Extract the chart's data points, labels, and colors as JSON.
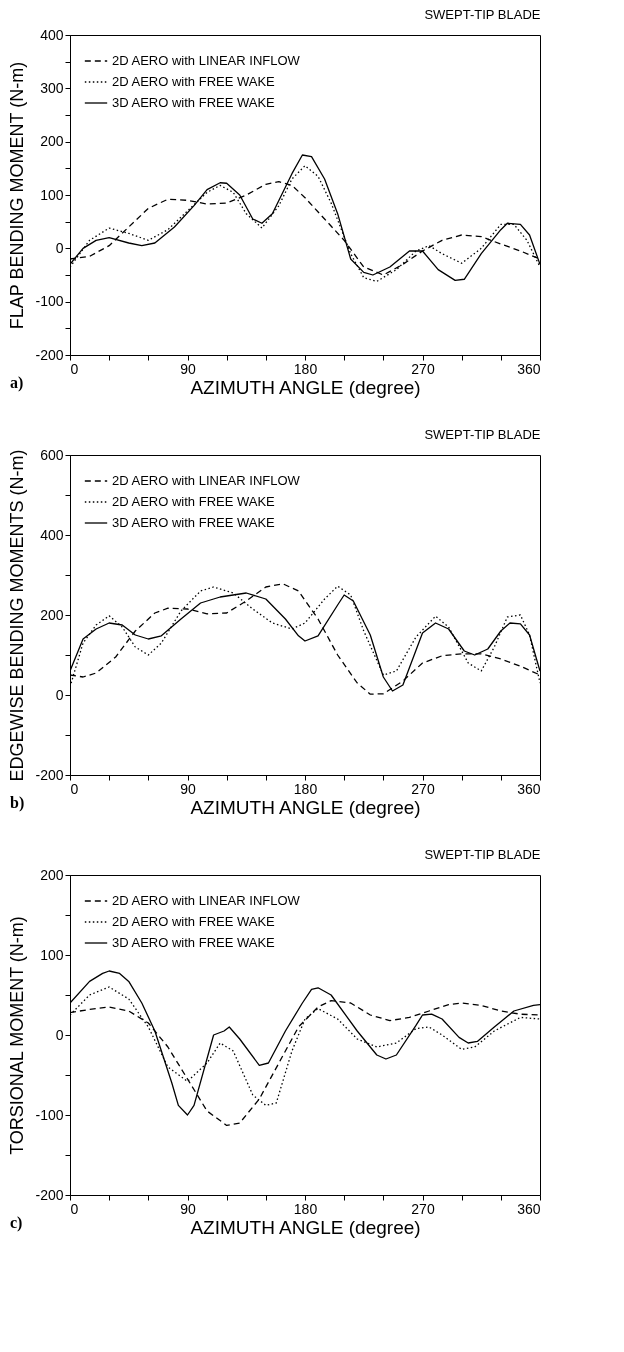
{
  "chart_data": [
    {
      "type": "line",
      "title": "SWEPT-TIP BLADE",
      "xlabel": "AZIMUTH ANGLE (degree)",
      "ylabel": "FLAP BENDING MOMENT (N-m)",
      "annotations": [
        "a)"
      ],
      "legend": "top left",
      "grid": false,
      "xlim": [
        0,
        360
      ],
      "xticks": [
        0,
        {
          "value": 30,
          "label": null
        },
        {
          "value": 60,
          "label": null
        },
        90,
        {
          "value": 120,
          "label": null
        },
        {
          "value": 150,
          "label": null
        },
        180,
        {
          "value": 210,
          "label": null
        },
        {
          "value": 240,
          "label": null
        },
        270,
        {
          "value": 300,
          "label": null
        },
        {
          "value": 330,
          "label": null
        },
        360
      ],
      "ylim": [
        -200,
        400
      ],
      "yticks": [
        -200,
        {
          "value": -150,
          "label": null
        },
        -100,
        {
          "value": -50,
          "label": null
        },
        0,
        {
          "value": 50,
          "label": null
        },
        100,
        {
          "value": 150,
          "label": null
        },
        200,
        {
          "value": 250,
          "label": null
        },
        300,
        {
          "value": 350,
          "label": null
        },
        400
      ],
      "series": [
        {
          "name": "2D AERO with LINEAR INFLOW",
          "color": "#000000",
          "line_style": "dashed",
          "x": [
            0,
            15,
            30,
            45,
            60,
            75,
            90,
            105,
            120,
            135,
            150,
            160,
            170,
            180,
            195,
            210,
            225,
            240,
            255,
            270,
            285,
            300,
            315,
            330,
            345,
            360
          ],
          "values": [
            -20,
            -15,
            5,
            40,
            75,
            92,
            90,
            83,
            85,
            100,
            120,
            125,
            118,
            95,
            55,
            15,
            -35,
            -50,
            -30,
            -5,
            15,
            25,
            22,
            8,
            -5,
            -20
          ]
        },
        {
          "name": "2D AERO with FREE WAKE",
          "color": "#000000",
          "line_style": "dotted",
          "x": [
            0,
            15,
            30,
            45,
            60,
            75,
            90,
            105,
            115,
            125,
            135,
            147,
            160,
            170,
            180,
            190,
            200,
            215,
            225,
            235,
            250,
            265,
            275,
            285,
            300,
            315,
            330,
            340,
            350,
            360
          ],
          "values": [
            -35,
            15,
            38,
            28,
            15,
            35,
            70,
            105,
            118,
            105,
            65,
            38,
            80,
            130,
            155,
            135,
            85,
            -10,
            -55,
            -62,
            -40,
            -5,
            5,
            -10,
            -28,
            0,
            45,
            45,
            15,
            -35
          ]
        },
        {
          "name": "3D AERO with FREE WAKE",
          "color": "#000000",
          "line_style": "solid",
          "x": [
            0,
            10,
            20,
            30,
            45,
            55,
            65,
            80,
            95,
            105,
            115,
            120,
            130,
            140,
            147,
            155,
            170,
            178,
            185,
            195,
            205,
            215,
            225,
            232,
            245,
            260,
            270,
            282,
            295,
            302,
            315,
            330,
            335,
            345,
            352,
            360
          ],
          "values": [
            -30,
            0,
            15,
            20,
            10,
            5,
            10,
            40,
            80,
            110,
            123,
            122,
            100,
            55,
            47,
            65,
            140,
            175,
            172,
            130,
            65,
            -20,
            -45,
            -50,
            -35,
            -5,
            -5,
            -40,
            -60,
            -58,
            -10,
            35,
            47,
            45,
            25,
            -30
          ]
        }
      ]
    },
    {
      "type": "line",
      "title": "SWEPT-TIP BLADE",
      "xlabel": "AZIMUTH ANGLE (degree)",
      "ylabel": "EDGEWISE BENDING MOMENTS (N-m)",
      "annotations": [
        "b)"
      ],
      "legend": "top left",
      "grid": false,
      "xlim": [
        0,
        360
      ],
      "xticks": [
        0,
        {
          "value": 30,
          "label": null
        },
        {
          "value": 60,
          "label": null
        },
        90,
        {
          "value": 120,
          "label": null
        },
        {
          "value": 150,
          "label": null
        },
        180,
        {
          "value": 210,
          "label": null
        },
        {
          "value": 240,
          "label": null
        },
        270,
        {
          "value": 300,
          "label": null
        },
        {
          "value": 330,
          "label": null
        },
        360
      ],
      "ylim": [
        -200,
        600
      ],
      "yticks": [
        -200,
        {
          "value": -100,
          "label": null
        },
        0,
        {
          "value": 100,
          "label": null
        },
        200,
        {
          "value": 300,
          "label": null
        },
        400,
        {
          "value": 500,
          "label": null
        },
        600
      ],
      "series": [
        {
          "name": "2D AERO with LINEAR INFLOW",
          "color": "#000000",
          "line_style": "dashed",
          "x": [
            0,
            10,
            20,
            35,
            50,
            65,
            75,
            90,
            105,
            120,
            135,
            150,
            163,
            175,
            190,
            205,
            220,
            230,
            240,
            255,
            270,
            285,
            300,
            315,
            330,
            345,
            360
          ],
          "values": [
            50,
            45,
            55,
            95,
            160,
            205,
            217,
            215,
            203,
            205,
            235,
            270,
            278,
            260,
            190,
            100,
            30,
            2,
            3,
            35,
            80,
            98,
            103,
            103,
            90,
            72,
            50
          ]
        },
        {
          "name": "2D AERO with FREE WAKE",
          "color": "#000000",
          "line_style": "dotted",
          "x": [
            0,
            10,
            20,
            30,
            40,
            50,
            60,
            70,
            85,
            100,
            110,
            125,
            140,
            155,
            170,
            180,
            195,
            205,
            215,
            225,
            240,
            250,
            265,
            280,
            290,
            305,
            315,
            325,
            335,
            345,
            352,
            360
          ],
          "values": [
            20,
            130,
            175,
            198,
            170,
            120,
            100,
            130,
            210,
            260,
            270,
            255,
            215,
            180,
            165,
            180,
            240,
            272,
            250,
            160,
            50,
            60,
            145,
            197,
            170,
            80,
            60,
            120,
            195,
            200,
            150,
            30
          ]
        },
        {
          "name": "3D AERO with FREE WAKE",
          "color": "#000000",
          "line_style": "solid",
          "x": [
            0,
            10,
            20,
            30,
            40,
            50,
            60,
            70,
            85,
            100,
            115,
            135,
            150,
            165,
            175,
            180,
            190,
            205,
            210,
            217,
            230,
            240,
            247,
            255,
            270,
            280,
            290,
            302,
            310,
            320,
            330,
            337,
            345,
            352,
            360
          ],
          "values": [
            60,
            140,
            165,
            180,
            175,
            150,
            140,
            148,
            190,
            230,
            245,
            255,
            240,
            190,
            148,
            135,
            148,
            225,
            250,
            235,
            150,
            45,
            10,
            25,
            155,
            180,
            165,
            110,
            100,
            115,
            160,
            180,
            178,
            150,
            60
          ]
        }
      ]
    },
    {
      "type": "line",
      "title": "SWEPT-TIP BLADE",
      "xlabel": "AZIMUTH   ANGLE (degree)",
      "ylabel": "TORSIONAL   MOMENT (N-m)",
      "annotations": [
        "c)"
      ],
      "legend": "top left",
      "grid": false,
      "xlim": [
        0,
        360
      ],
      "xticks": [
        0,
        {
          "value": 30,
          "label": null
        },
        {
          "value": 60,
          "label": null
        },
        90,
        {
          "value": 120,
          "label": null
        },
        {
          "value": 150,
          "label": null
        },
        180,
        {
          "value": 210,
          "label": null
        },
        {
          "value": 240,
          "label": null
        },
        270,
        {
          "value": 300,
          "label": null
        },
        {
          "value": 330,
          "label": null
        },
        360
      ],
      "ylim": [
        -200,
        200
      ],
      "yticks": [
        -200,
        {
          "value": -150,
          "label": null
        },
        -100,
        {
          "value": -50,
          "label": null
        },
        0,
        {
          "value": 50,
          "label": null
        },
        100,
        {
          "value": 150,
          "label": null
        },
        200
      ],
      "series": [
        {
          "name": "2D AERO with LINEAR INFLOW",
          "color": "#000000",
          "line_style": "dashed",
          "x": [
            0,
            15,
            30,
            45,
            60,
            75,
            90,
            105,
            120,
            130,
            145,
            160,
            175,
            190,
            200,
            215,
            230,
            245,
            260,
            275,
            290,
            300,
            315,
            330,
            345,
            360
          ],
          "values": [
            28,
            32,
            35,
            30,
            15,
            -15,
            -55,
            -95,
            -113,
            -110,
            -80,
            -35,
            10,
            35,
            43,
            40,
            25,
            18,
            22,
            30,
            38,
            40,
            37,
            30,
            26,
            25
          ]
        },
        {
          "name": "2D AERO with FREE WAKE",
          "color": "#000000",
          "line_style": "dotted",
          "x": [
            0,
            15,
            30,
            45,
            60,
            75,
            90,
            105,
            115,
            125,
            140,
            150,
            158,
            170,
            180,
            190,
            205,
            220,
            235,
            250,
            265,
            275,
            285,
            300,
            310,
            325,
            345,
            360
          ],
          "values": [
            25,
            50,
            60,
            45,
            10,
            -40,
            -58,
            -35,
            -10,
            -20,
            -75,
            -88,
            -85,
            -20,
            20,
            33,
            20,
            -5,
            -15,
            -10,
            8,
            10,
            0,
            -18,
            -15,
            5,
            22,
            20
          ]
        },
        {
          "name": "3D AERO with FREE WAKE",
          "color": "#000000",
          "line_style": "solid",
          "x": [
            0,
            15,
            25,
            30,
            38,
            45,
            55,
            65,
            78,
            83,
            90,
            95,
            110,
            118,
            122,
            130,
            145,
            152,
            165,
            178,
            185,
            190,
            200,
            220,
            235,
            242,
            250,
            265,
            270,
            277,
            285,
            298,
            305,
            312,
            325,
            340,
            355,
            360
          ],
          "values": [
            40,
            67,
            77,
            80,
            77,
            67,
            40,
            5,
            -60,
            -88,
            -100,
            -88,
            0,
            5,
            10,
            -5,
            -38,
            -35,
            5,
            40,
            57,
            59,
            50,
            5,
            -25,
            -30,
            -25,
            12,
            25,
            26,
            20,
            -3,
            -10,
            -8,
            10,
            30,
            37,
            38
          ]
        }
      ]
    }
  ]
}
